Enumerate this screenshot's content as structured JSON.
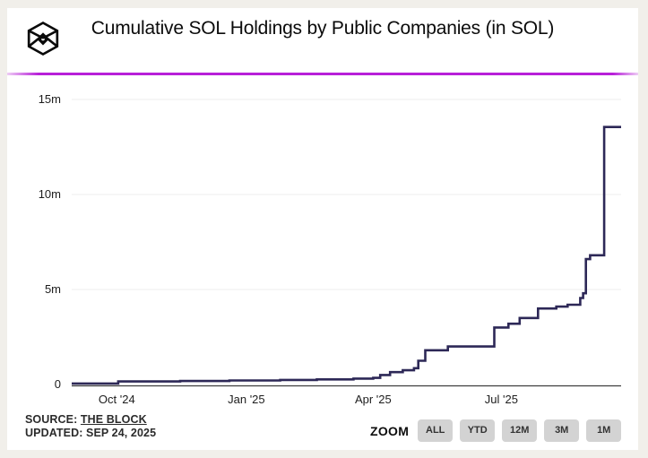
{
  "header": {
    "title": "Cumulative SOL Holdings by Public Companies (in SOL)"
  },
  "footer": {
    "source_label": "SOURCE:",
    "source_link": "THE BLOCK",
    "updated": "UPDATED: SEP 24, 2025"
  },
  "zoom_controls": {
    "label": "ZOOM",
    "buttons": [
      "ALL",
      "YTD",
      "12M",
      "3M",
      "1M"
    ]
  },
  "colors": {
    "accent_divider": "#b820d9",
    "series_line": "#2d2857",
    "button_bg": "#d3d3d3",
    "page_background": "#f1efea",
    "card_background": "#ffffff"
  },
  "icons": {
    "logo": "the-block-cube-logo"
  },
  "chart_data": {
    "type": "line",
    "step": true,
    "title": "Cumulative SOL Holdings by Public Companies (in SOL)",
    "xlabel": "",
    "ylabel": "",
    "unit": "SOL",
    "legend": false,
    "grid": "horizontal",
    "x_range": [
      "2024-08-30",
      "2025-09-24"
    ],
    "ylim": [
      0,
      15000000
    ],
    "y_ticks": [
      {
        "label": "0",
        "value": 0
      },
      {
        "label": "5m",
        "value": 5000000
      },
      {
        "label": "10m",
        "value": 10000000
      },
      {
        "label": "15m",
        "value": 15000000
      }
    ],
    "x_ticks": [
      {
        "label": "Oct '24",
        "date": "2024-10-01"
      },
      {
        "label": "Jan '25",
        "date": "2025-01-01"
      },
      {
        "label": "Apr '25",
        "date": "2025-04-01"
      },
      {
        "label": "Jul '25",
        "date": "2025-07-01"
      }
    ],
    "points": [
      [
        "2024-08-30",
        50000
      ],
      [
        "2024-10-02",
        160000
      ],
      [
        "2024-11-15",
        185000
      ],
      [
        "2024-12-20",
        210000
      ],
      [
        "2025-01-25",
        240000
      ],
      [
        "2025-02-20",
        270000
      ],
      [
        "2025-03-18",
        310000
      ],
      [
        "2025-04-01",
        350000
      ],
      [
        "2025-04-06",
        500000
      ],
      [
        "2025-04-13",
        650000
      ],
      [
        "2025-04-22",
        750000
      ],
      [
        "2025-04-30",
        860000
      ],
      [
        "2025-05-03",
        1250000
      ],
      [
        "2025-05-08",
        1800000
      ],
      [
        "2025-05-24",
        2000000
      ],
      [
        "2025-06-26",
        3000000
      ],
      [
        "2025-07-06",
        3200000
      ],
      [
        "2025-07-14",
        3500000
      ],
      [
        "2025-07-27",
        4000000
      ],
      [
        "2025-08-09",
        4100000
      ],
      [
        "2025-08-17",
        4200000
      ],
      [
        "2025-08-26",
        4550000
      ],
      [
        "2025-08-28",
        4800000
      ],
      [
        "2025-08-30",
        6600000
      ],
      [
        "2025-09-02",
        6800000
      ],
      [
        "2025-09-12",
        13550000
      ],
      [
        "2025-09-24",
        13550000
      ]
    ]
  }
}
